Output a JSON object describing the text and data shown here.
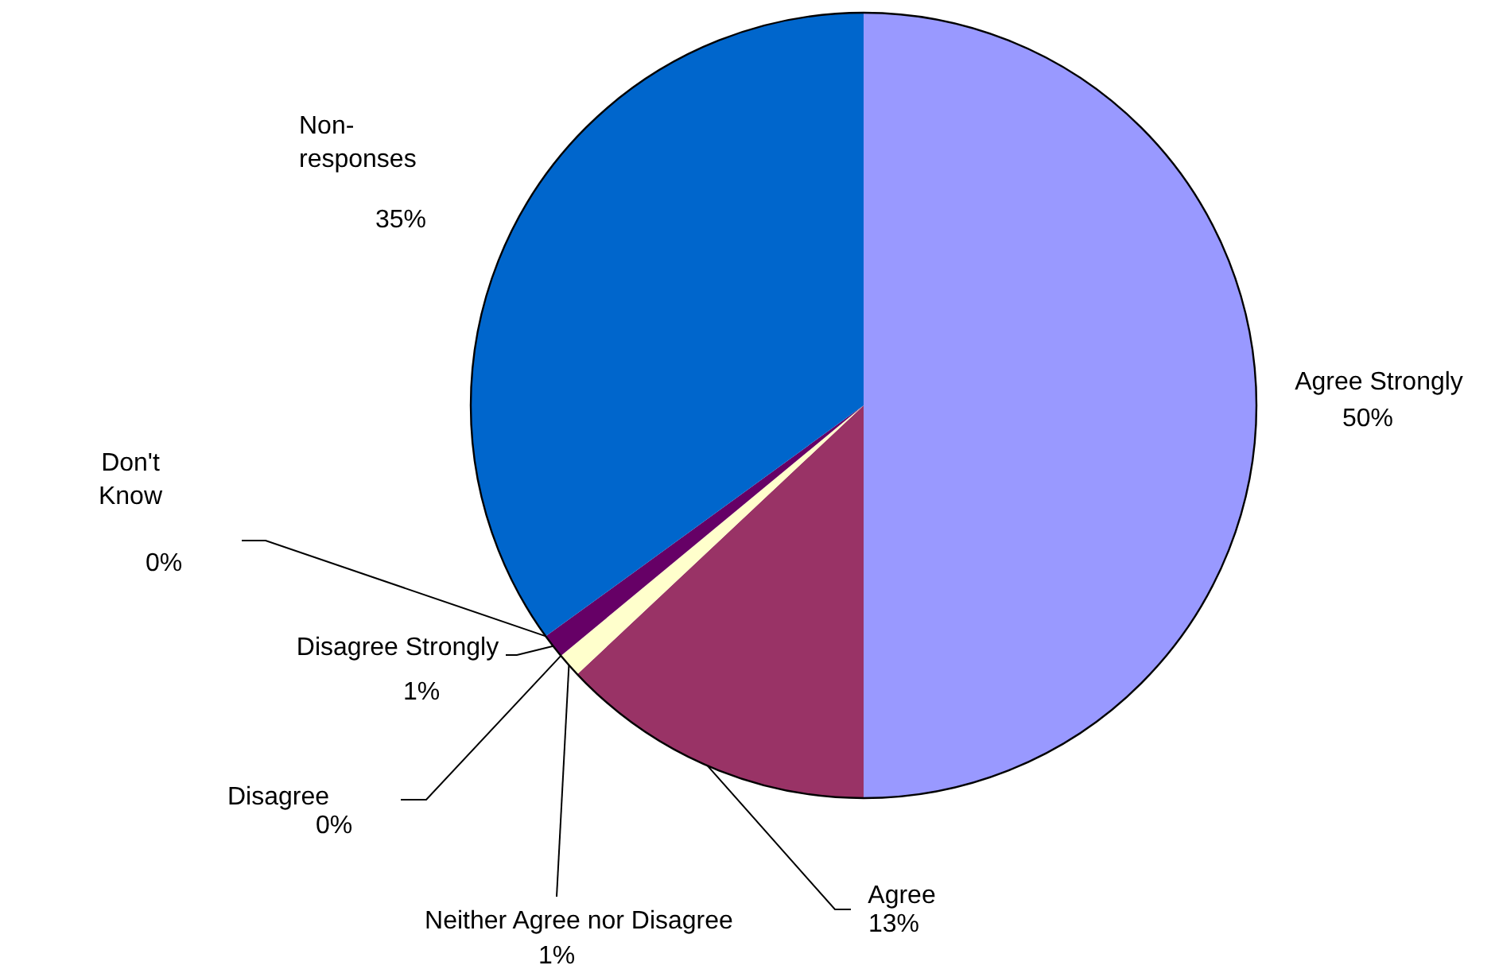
{
  "chart_data": {
    "type": "pie",
    "categories": [
      "Agree Strongly",
      "Agree",
      "Neither Agree nor Disagree",
      "Disagree",
      "Disagree Strongly",
      "Don't Know",
      "Non-responses"
    ],
    "values": [
      50,
      13,
      1,
      0,
      1,
      0,
      35
    ],
    "value_labels": [
      "50%",
      "13%",
      "1%",
      "0%",
      "1%",
      "0%",
      "35%"
    ],
    "colors": [
      "#9999ff",
      "#993366",
      "#ffffcc",
      "#ccffff",
      "#660066",
      "#ff8080",
      "#0066cc"
    ]
  }
}
